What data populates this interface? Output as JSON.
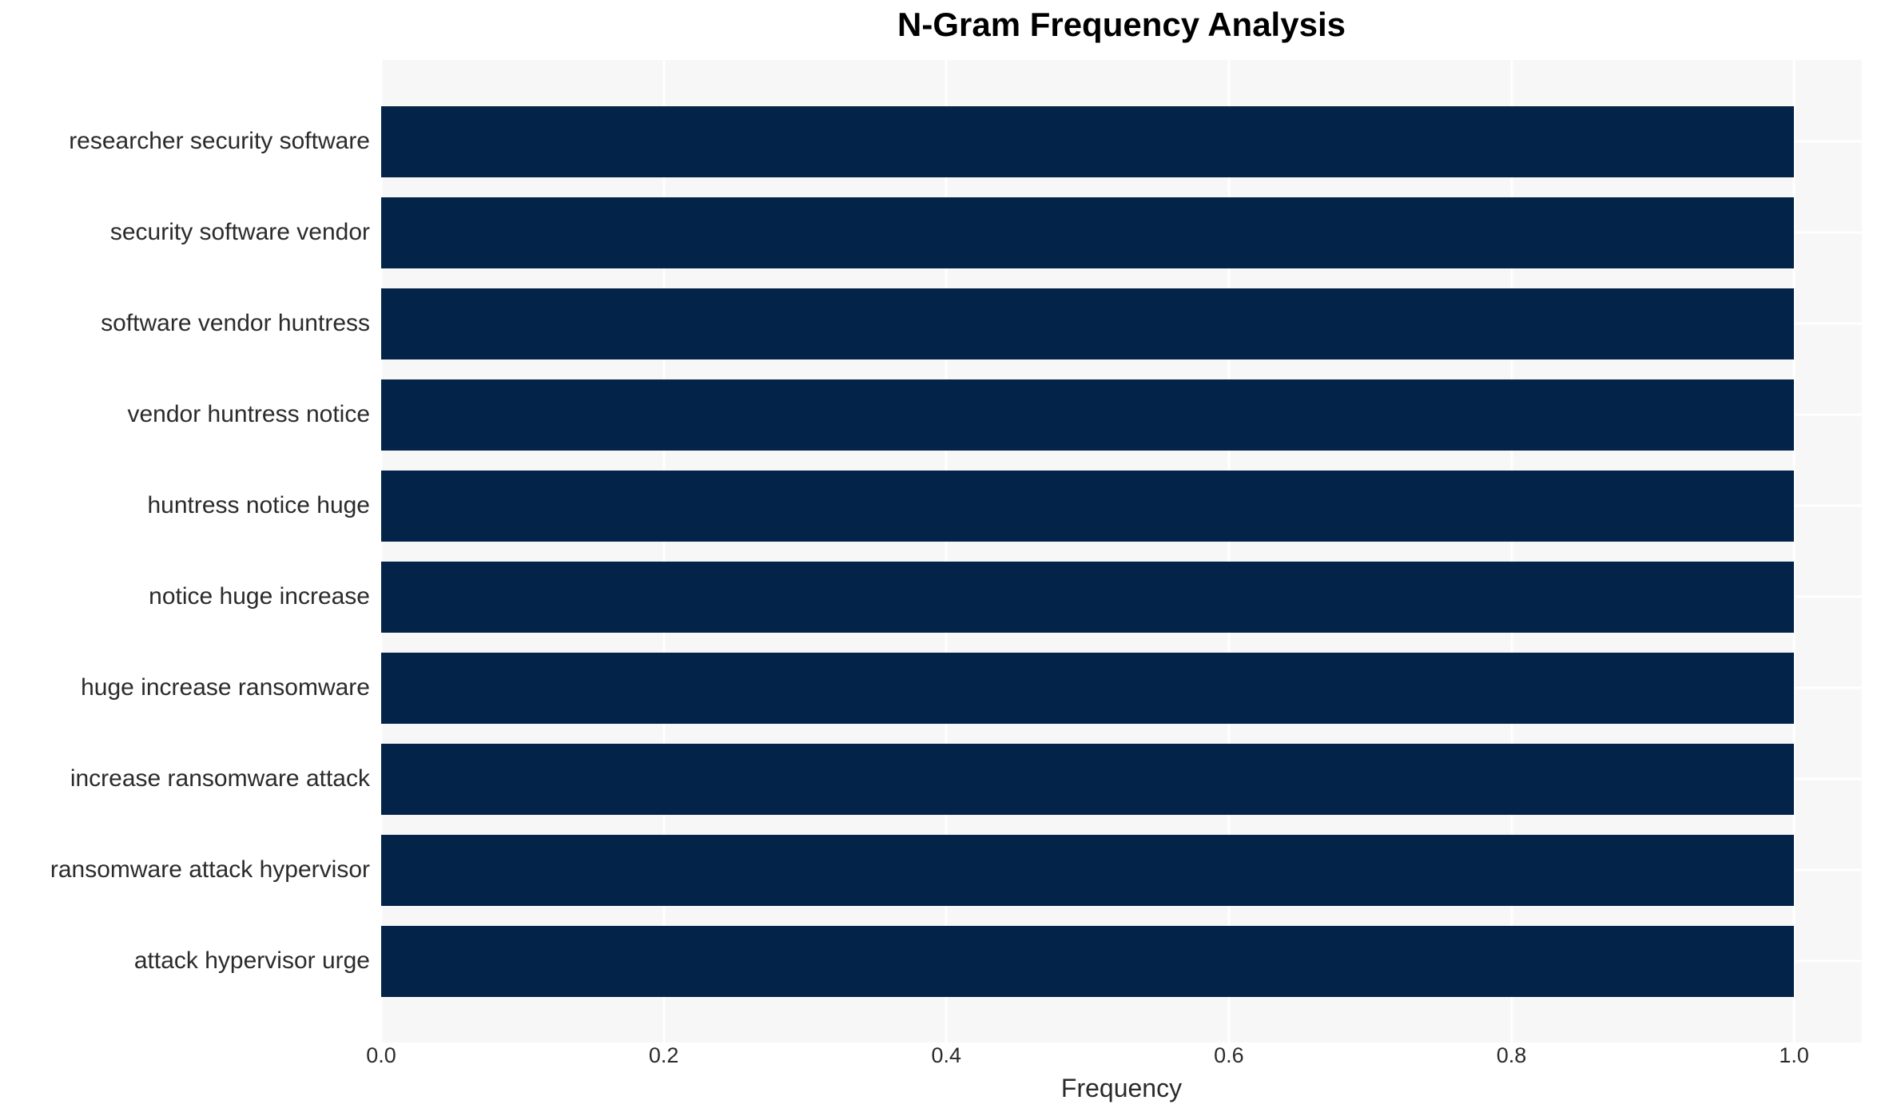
{
  "chart_data": {
    "type": "bar",
    "orientation": "horizontal",
    "title": "N-Gram Frequency Analysis",
    "xlabel": "Frequency",
    "ylabel": "",
    "categories": [
      "researcher security software",
      "security software vendor",
      "software vendor huntress",
      "vendor huntress notice",
      "huntress notice huge",
      "notice huge increase",
      "huge increase ransomware",
      "increase ransomware attack",
      "ransomware attack hypervisor",
      "attack hypervisor urge"
    ],
    "values": [
      1.0,
      1.0,
      1.0,
      1.0,
      1.0,
      1.0,
      1.0,
      1.0,
      1.0,
      1.0
    ],
    "xtick_values": [
      0.0,
      0.2,
      0.4,
      0.6,
      0.8,
      1.0
    ],
    "xtick_labels": [
      "0.0",
      "0.2",
      "0.4",
      "0.6",
      "0.8",
      "1.0"
    ],
    "xlim": [
      0,
      1.048
    ],
    "grid": "white major gridlines on light gray panel, horizontal line at each category center",
    "legend": "none",
    "colors": {
      "bar": "#042349",
      "panel_background": "#f7f7f7",
      "gridline": "#ffffff",
      "title": "#000000",
      "text": "#2b2b2b"
    }
  }
}
